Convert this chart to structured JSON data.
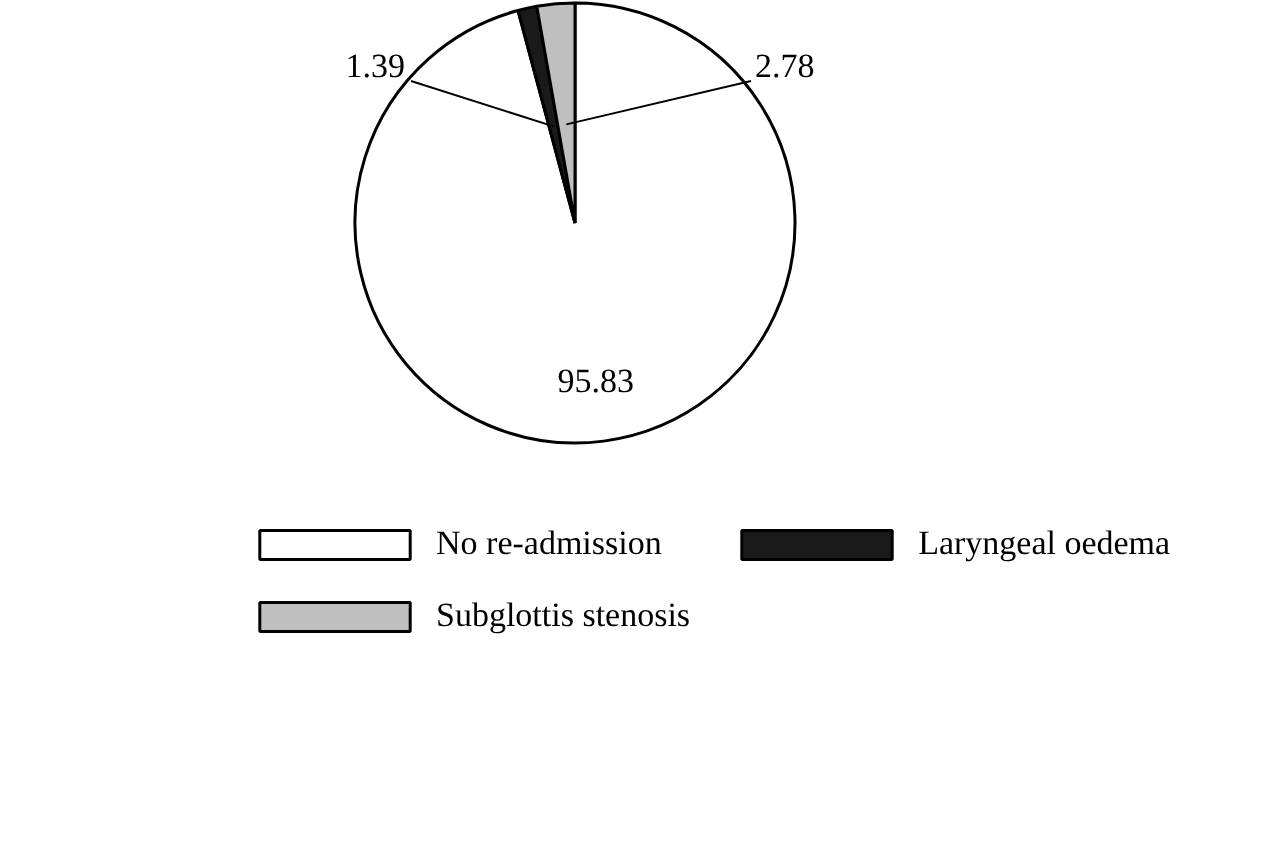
{
  "chart_data": {
    "type": "pie",
    "categories": [
      "No re-admission",
      "Laryngeal oedema",
      "Subglottis stenosis"
    ],
    "values": [
      95.83,
      1.39,
      2.78
    ],
    "colors": [
      "#ffffff",
      "#1a1a1a",
      "#bfbfbf"
    ],
    "data_labels": true,
    "legend": "bottom"
  }
}
